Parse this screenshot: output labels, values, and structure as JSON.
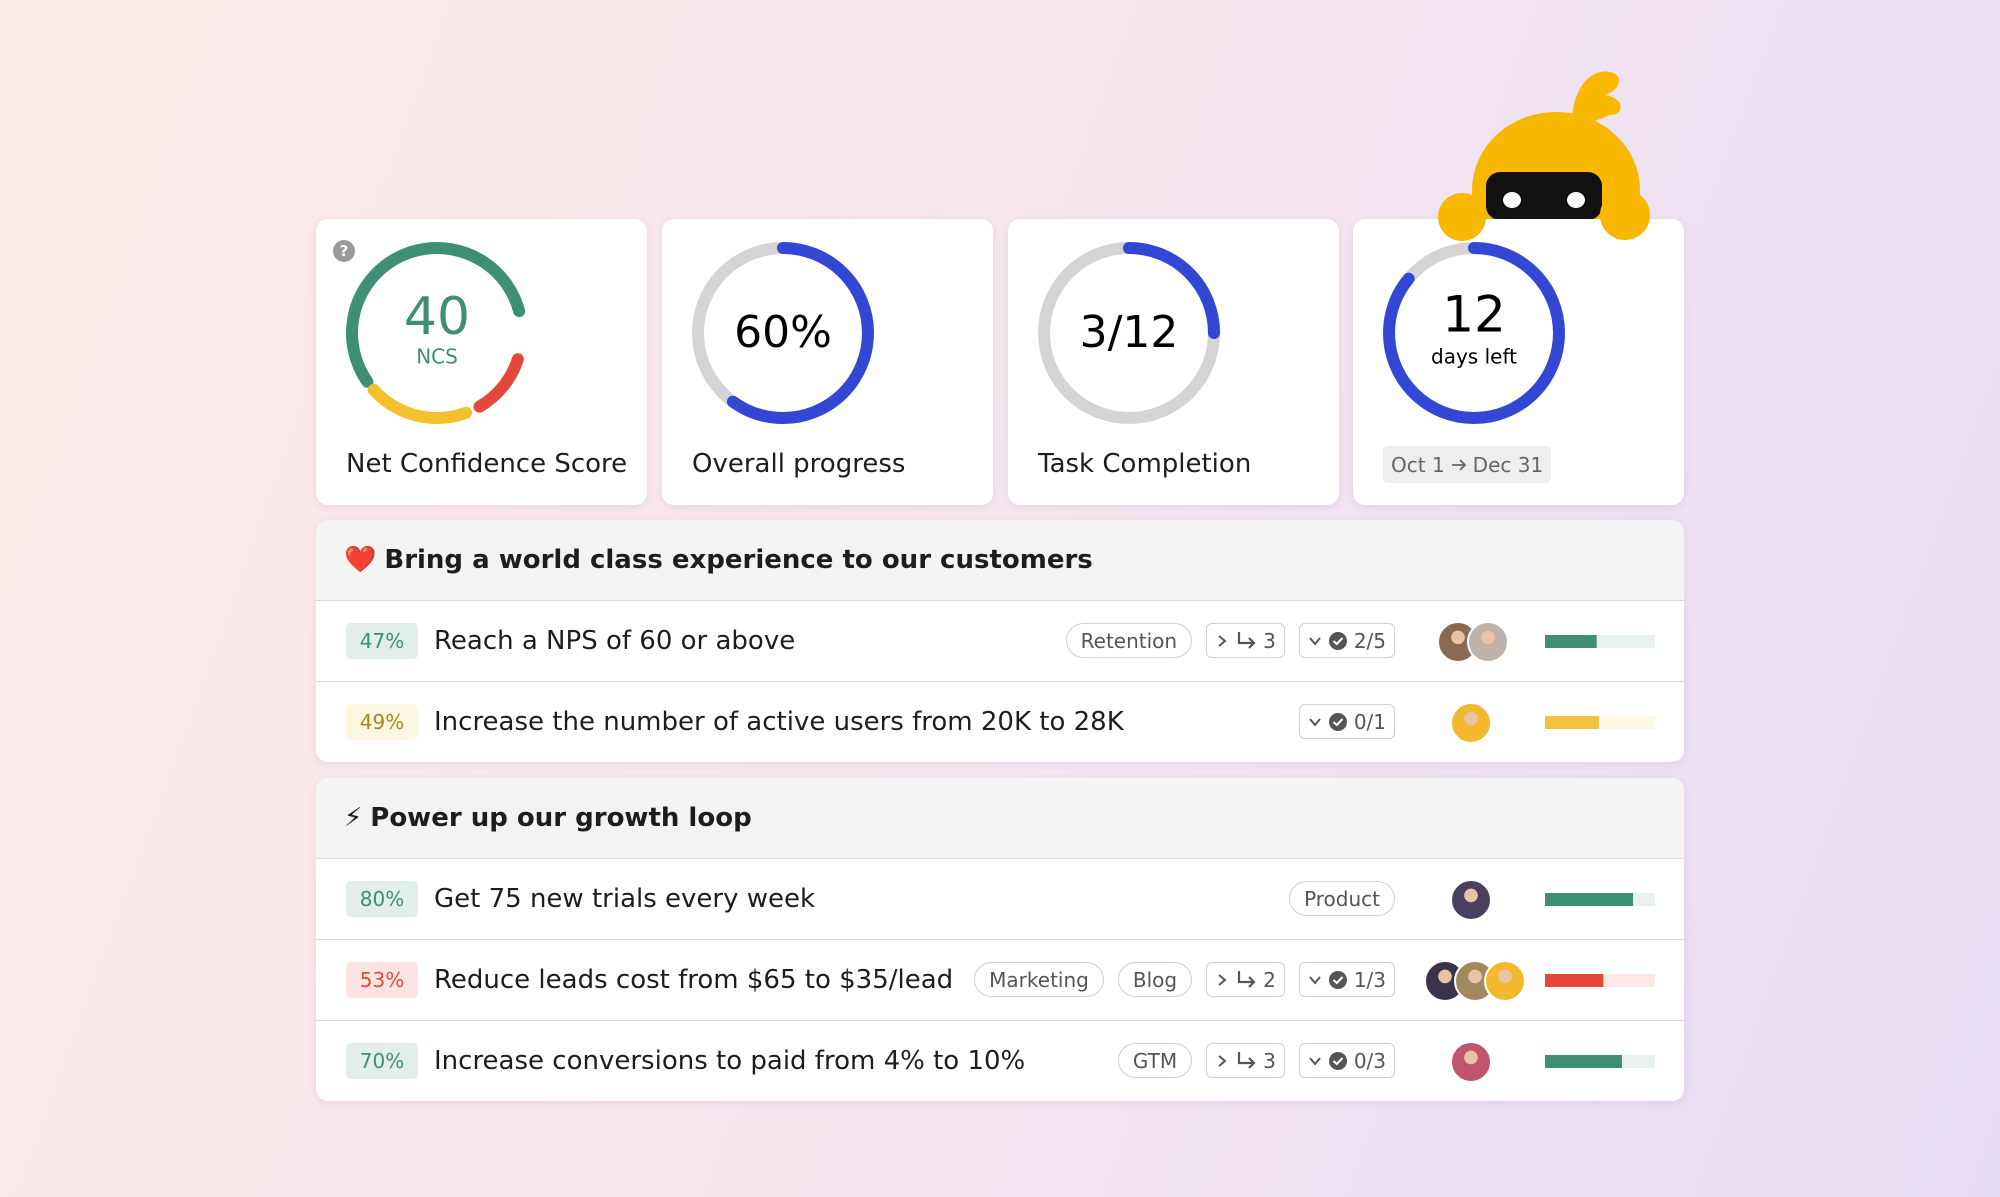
{
  "cards": [
    {
      "help": "?",
      "value": 40,
      "unit": "NCS",
      "label": "Net Confidence Score"
    },
    {
      "progress": {
        "value": 60,
        "label": "60%"
      },
      "label": "Overall progress"
    },
    {
      "progress": {
        "value": 25,
        "label": "3/12"
      },
      "label": "Task Completion"
    },
    {
      "value": 12,
      "unit": "days left",
      "progress": 86,
      "dates": {
        "start": "Oct 1",
        "end": "Dec 31"
      }
    }
  ],
  "objectives": [
    {
      "icon": "❤️",
      "title": "Bring a world class experience to our customers",
      "key_results": [
        {
          "progress": {
            "value": 47,
            "label": "47%"
          },
          "color": "#3e8f75",
          "title": "Reach a NPS of 60 or above",
          "tags": [
            "Retention"
          ],
          "subtasks": 3,
          "checklist": "2/5"
        },
        {
          "progress": {
            "value": 49,
            "label": "49%"
          },
          "color": "#f2c23c",
          "text_color": "#a8891c",
          "title": "Increase the number of active users from 20K to 28K",
          "checklist": "0/1"
        }
      ]
    },
    {
      "icon": "⚡",
      "title": "Power up our growth loop",
      "key_results": [
        {
          "progress": {
            "value": 80,
            "label": "80%"
          },
          "color": "#3e8f75",
          "title": "Get 75 new trials every week",
          "tags": [
            "Product"
          ]
        },
        {
          "progress": {
            "value": 53,
            "label": "53%"
          },
          "color": "#e5483b",
          "title": "Reduce leads cost from $65 to $35/lead",
          "tags": [
            "Marketing",
            "Blog"
          ],
          "subtasks": 2,
          "checklist": "1/3"
        },
        {
          "progress": {
            "value": 70,
            "label": "70%"
          },
          "color": "#3e8f75",
          "title": "Increase conversions to paid from 4% to 10%",
          "tags": [
            "GTM"
          ],
          "subtasks": 3,
          "checklist": "0/3"
        }
      ]
    }
  ]
}
